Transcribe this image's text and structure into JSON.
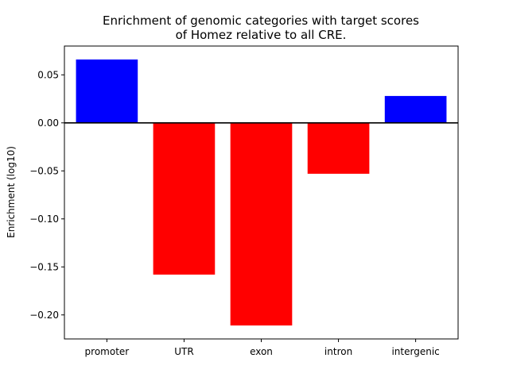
{
  "chart_data": {
    "type": "bar",
    "title_lines": [
      "Enrichment of genomic categories with target scores",
      "of Homez relative to all CRE."
    ],
    "xlabel": "",
    "ylabel": "Enrichment (log10)",
    "categories": [
      "promoter",
      "UTR",
      "exon",
      "intron",
      "intergenic"
    ],
    "values": [
      0.066,
      -0.158,
      -0.211,
      -0.053,
      0.028
    ],
    "ylim": [
      -0.225,
      0.08
    ],
    "yticks": [
      0.05,
      0.0,
      -0.05,
      -0.1,
      -0.15,
      -0.2
    ],
    "ytick_labels": [
      "0.05",
      "0.00",
      "−0.05",
      "−0.10",
      "−0.15",
      "−0.20"
    ],
    "positive_color": "#0000ff",
    "negative_color": "#ff0000",
    "zero_line": true,
    "grid": false,
    "legend": "none"
  }
}
